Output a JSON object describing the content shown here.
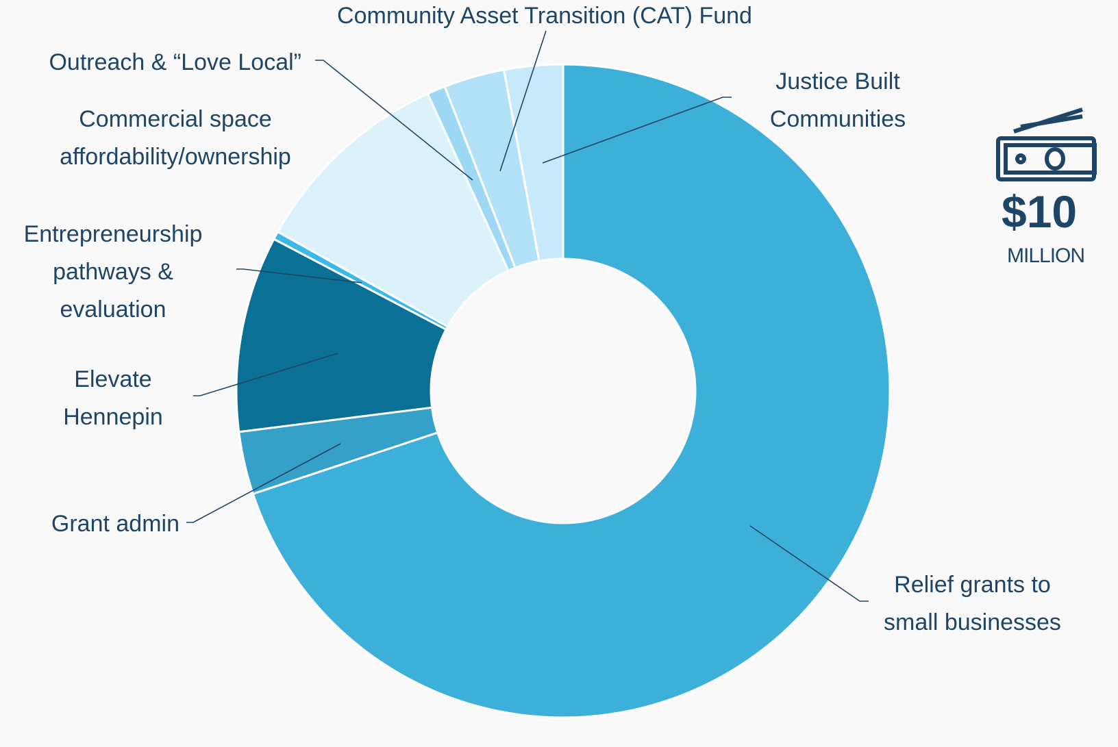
{
  "chart_data": {
    "type": "donut",
    "categories": [
      "Relief grants to small businesses",
      "Grant admin",
      "Elevate Hennepin",
      "Entrepreneurship pathways & evaluation",
      "Commercial space affordability/ownership",
      "Outreach & “Love Local”",
      "Community Asset Transition (CAT) Fund",
      "Justice Built Communities"
    ],
    "values": [
      69.9,
      3.1,
      9.7,
      0.4,
      10.1,
      0.9,
      3.0,
      2.9
    ],
    "colors": [
      "#3db0da",
      "#35a0c8",
      "#0b7096",
      "#3bb8e8",
      "#dbf2fc",
      "#9dd9f5",
      "#b3e2f8",
      "#c8e9fa"
    ],
    "annotation": {
      "amount": "$10",
      "unit": "MILLION"
    }
  }
}
